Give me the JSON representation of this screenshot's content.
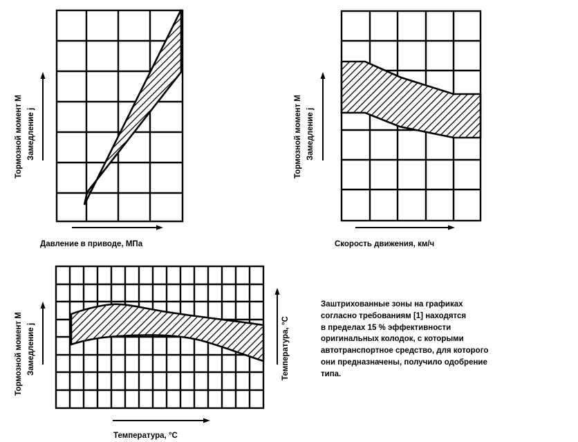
{
  "diagrams": {
    "top_left": {
      "y_label_outer": "Тормозной момент M",
      "y_label_inner": "Замедление j",
      "x_label": "Давление в приводе, МПа"
    },
    "top_right": {
      "y_label_outer": "Тормозной момент M",
      "y_label_inner": "Замедление j",
      "x_label": "Скорость движения, км/ч"
    },
    "bottom": {
      "y_label_outer": "Тормозной момент M",
      "y_label_inner": "Замедление j",
      "y_label_right": "Температура, °С",
      "x_label": "Температура, °С"
    }
  },
  "note": {
    "lines": [
      "Заштрихованные зоны на графиках",
      "согласно требованиям [1] находятся",
      "в пределах 15 % эффективности",
      "оригинальных колодок, с которыми",
      "автотранспортное средство, для которого",
      "они предназначены, получило одобрение",
      "типа."
    ]
  },
  "colors": {
    "ink": "#000000",
    "paper": "#ffffff"
  }
}
